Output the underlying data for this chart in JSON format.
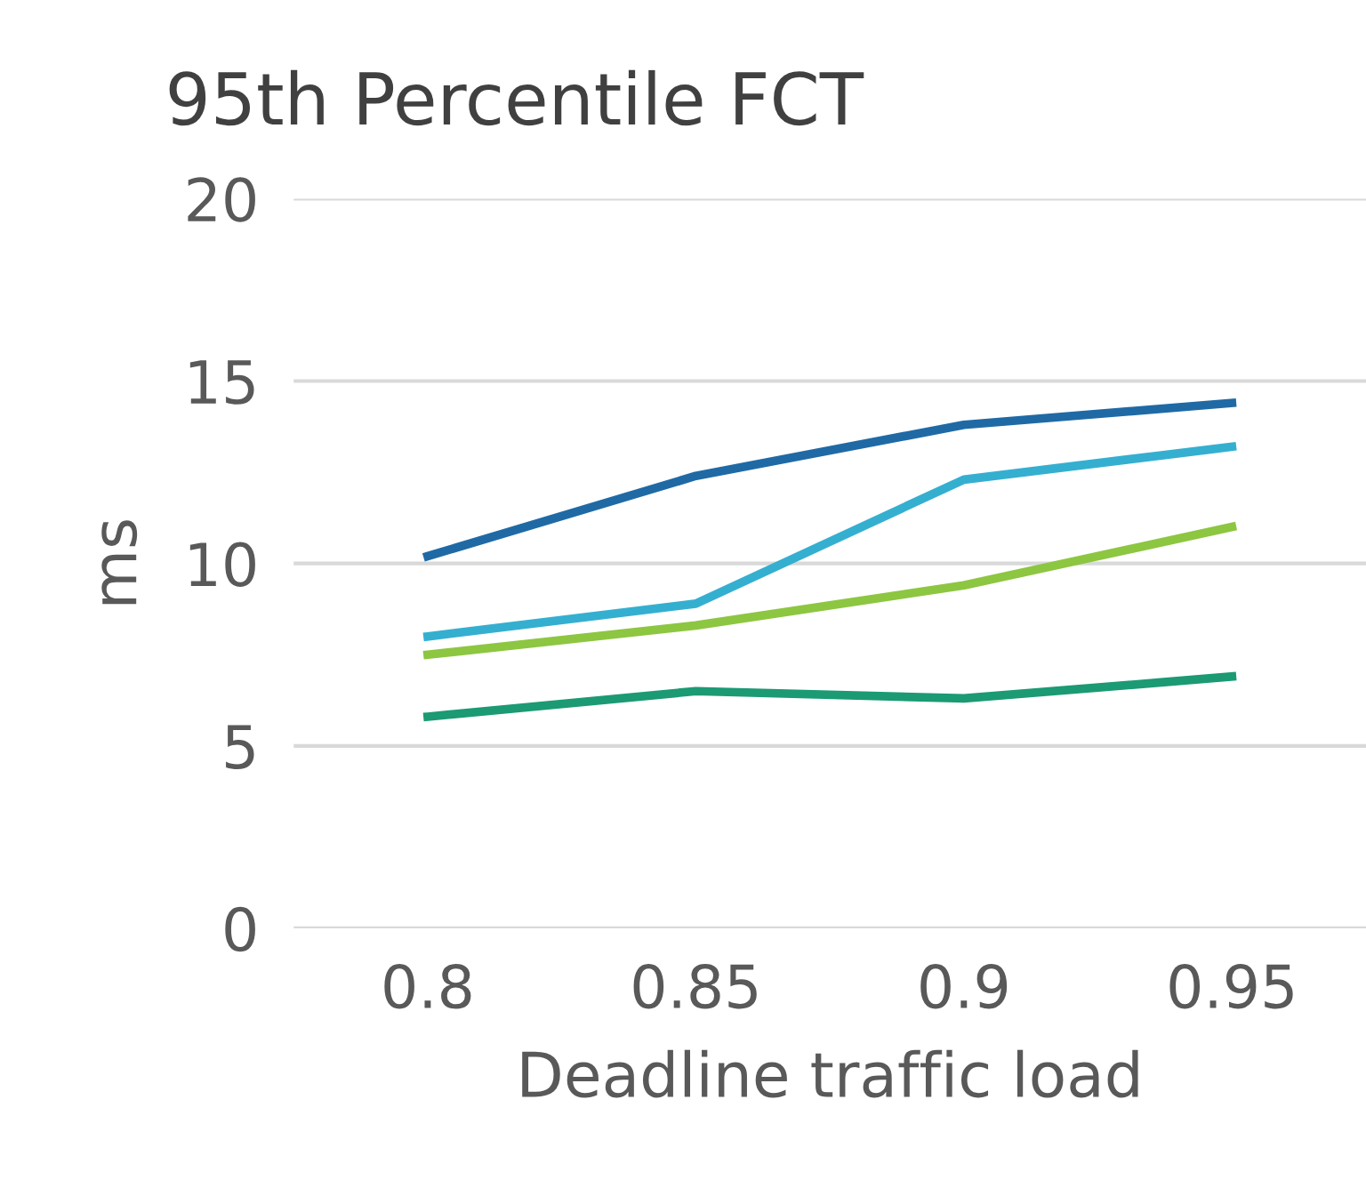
{
  "chart_data": {
    "type": "line",
    "title": "95th Percentile FCT",
    "xlabel": "Deadline traffic load",
    "ylabel": "ms",
    "categories": [
      "0.8",
      "0.85",
      "0.9",
      "0.95"
    ],
    "series": [
      {
        "color": "#1f6aa5",
        "values": [
          10.2,
          12.4,
          13.8,
          14.4
        ]
      },
      {
        "color": "#35afd0",
        "values": [
          8.0,
          8.9,
          12.3,
          13.2
        ]
      },
      {
        "color": "#8dc641",
        "values": [
          7.5,
          8.3,
          9.4,
          11.0
        ]
      },
      {
        "color": "#1b9a73",
        "values": [
          5.8,
          6.5,
          6.3,
          6.9
        ]
      }
    ],
    "ylim": [
      0,
      20
    ],
    "yticks": [
      0,
      5,
      10,
      15,
      20
    ],
    "grid": "y",
    "marker": "none",
    "line_style": "solid"
  }
}
